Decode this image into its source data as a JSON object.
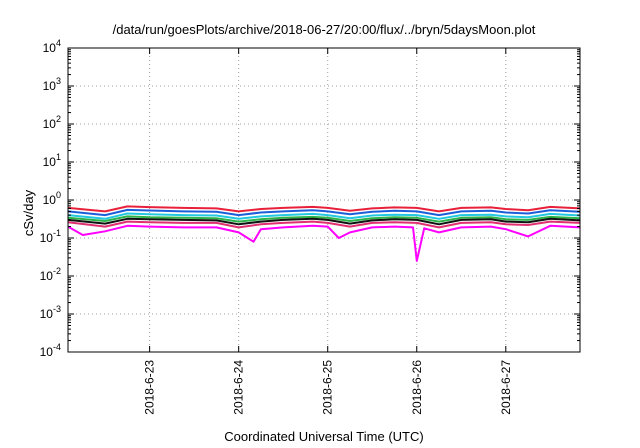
{
  "chart_data": {
    "type": "line",
    "title": "/data/run/goesPlots/archive/2018-06-27/20:00/flux/../bryn/5daysMoon.plot",
    "xlabel": "Coordinated Universal Time (UTC)",
    "ylabel": "cSv/day",
    "yscale": "log",
    "ylim": [
      0.0001,
      10000
    ],
    "xlim": [
      "2018-06-22T02:00",
      "2018-06-27T20:00"
    ],
    "x_ticks": [
      "2018-6-23",
      "2018-6-24",
      "2018-6-25",
      "2018-6-26",
      "2018-6-27"
    ],
    "y_ticks": [
      {
        "base": "10",
        "exp": "-4"
      },
      {
        "base": "10",
        "exp": "-3"
      },
      {
        "base": "10",
        "exp": "-2"
      },
      {
        "base": "10",
        "exp": "-1"
      },
      {
        "base": "10",
        "exp": "0"
      },
      {
        "base": "10",
        "exp": "1"
      },
      {
        "base": "10",
        "exp": "2"
      },
      {
        "base": "10",
        "exp": "3"
      },
      {
        "base": "10",
        "exp": "4"
      }
    ],
    "grid": true,
    "legend": "none",
    "series": [
      {
        "color": "#e8203a",
        "x": [
          "2018-06-22T02:00",
          "2018-06-22T12:00",
          "2018-06-22T18:00",
          "2018-06-23T00:00",
          "2018-06-23T09:00",
          "2018-06-23T18:00",
          "2018-06-24T00:00",
          "2018-06-24T06:00",
          "2018-06-24T12:00",
          "2018-06-24T20:00",
          "2018-06-25T00:00",
          "2018-06-25T06:00",
          "2018-06-25T12:00",
          "2018-06-25T18:00",
          "2018-06-26T00:00",
          "2018-06-26T06:00",
          "2018-06-26T12:00",
          "2018-06-26T20:00",
          "2018-06-27T00:00",
          "2018-06-27T06:00",
          "2018-06-27T12:00",
          "2018-06-27T20:00"
        ],
        "y": [
          0.62,
          0.5,
          0.68,
          0.65,
          0.62,
          0.6,
          0.5,
          0.58,
          0.62,
          0.66,
          0.62,
          0.52,
          0.6,
          0.64,
          0.62,
          0.5,
          0.62,
          0.64,
          0.58,
          0.54,
          0.66,
          0.6
        ]
      },
      {
        "color": "#1a5fd8",
        "x": [
          "2018-06-22T02:00",
          "2018-06-22T12:00",
          "2018-06-22T18:00",
          "2018-06-23T00:00",
          "2018-06-23T09:00",
          "2018-06-23T18:00",
          "2018-06-24T00:00",
          "2018-06-24T06:00",
          "2018-06-24T12:00",
          "2018-06-24T20:00",
          "2018-06-25T00:00",
          "2018-06-25T06:00",
          "2018-06-25T12:00",
          "2018-06-25T18:00",
          "2018-06-26T00:00",
          "2018-06-26T06:00",
          "2018-06-26T12:00",
          "2018-06-26T20:00",
          "2018-06-27T00:00",
          "2018-06-27T06:00",
          "2018-06-27T12:00",
          "2018-06-27T20:00"
        ],
        "y": [
          0.5,
          0.4,
          0.55,
          0.53,
          0.5,
          0.49,
          0.4,
          0.47,
          0.5,
          0.54,
          0.5,
          0.42,
          0.49,
          0.52,
          0.5,
          0.4,
          0.5,
          0.52,
          0.47,
          0.44,
          0.54,
          0.49
        ]
      },
      {
        "color": "#22c8e0",
        "x": [
          "2018-06-22T02:00",
          "2018-06-22T12:00",
          "2018-06-22T18:00",
          "2018-06-23T00:00",
          "2018-06-23T09:00",
          "2018-06-23T18:00",
          "2018-06-24T00:00",
          "2018-06-24T06:00",
          "2018-06-24T12:00",
          "2018-06-24T20:00",
          "2018-06-25T00:00",
          "2018-06-25T06:00",
          "2018-06-25T12:00",
          "2018-06-25T18:00",
          "2018-06-26T00:00",
          "2018-06-26T06:00",
          "2018-06-26T12:00",
          "2018-06-26T20:00",
          "2018-06-27T00:00",
          "2018-06-27T06:00",
          "2018-06-27T12:00",
          "2018-06-27T20:00"
        ],
        "y": [
          0.4,
          0.32,
          0.44,
          0.42,
          0.4,
          0.39,
          0.32,
          0.37,
          0.4,
          0.43,
          0.4,
          0.33,
          0.39,
          0.41,
          0.4,
          0.32,
          0.4,
          0.41,
          0.37,
          0.35,
          0.43,
          0.39
        ]
      },
      {
        "color": "#2bb34a",
        "x": [
          "2018-06-22T02:00",
          "2018-06-22T12:00",
          "2018-06-22T18:00",
          "2018-06-23T00:00",
          "2018-06-23T09:00",
          "2018-06-23T18:00",
          "2018-06-24T00:00",
          "2018-06-24T06:00",
          "2018-06-24T12:00",
          "2018-06-24T20:00",
          "2018-06-25T00:00",
          "2018-06-25T06:00",
          "2018-06-25T12:00",
          "2018-06-25T18:00",
          "2018-06-26T00:00",
          "2018-06-26T06:00",
          "2018-06-26T12:00",
          "2018-06-26T20:00",
          "2018-06-27T00:00",
          "2018-06-27T06:00",
          "2018-06-27T12:00",
          "2018-06-27T20:00"
        ],
        "y": [
          0.34,
          0.28,
          0.37,
          0.35,
          0.34,
          0.33,
          0.27,
          0.31,
          0.34,
          0.36,
          0.34,
          0.28,
          0.33,
          0.35,
          0.34,
          0.27,
          0.34,
          0.35,
          0.31,
          0.3,
          0.36,
          0.33
        ]
      },
      {
        "color": "#111111",
        "x": [
          "2018-06-22T02:00",
          "2018-06-22T12:00",
          "2018-06-22T18:00",
          "2018-06-23T00:00",
          "2018-06-23T09:00",
          "2018-06-23T18:00",
          "2018-06-24T00:00",
          "2018-06-24T06:00",
          "2018-06-24T12:00",
          "2018-06-24T20:00",
          "2018-06-25T00:00",
          "2018-06-25T06:00",
          "2018-06-25T12:00",
          "2018-06-25T18:00",
          "2018-06-26T00:00",
          "2018-06-26T06:00",
          "2018-06-26T12:00",
          "2018-06-26T20:00",
          "2018-06-27T00:00",
          "2018-06-27T06:00",
          "2018-06-27T12:00",
          "2018-06-27T20:00"
        ],
        "y": [
          0.3,
          0.24,
          0.32,
          0.31,
          0.3,
          0.29,
          0.23,
          0.27,
          0.3,
          0.32,
          0.3,
          0.24,
          0.29,
          0.31,
          0.3,
          0.23,
          0.3,
          0.31,
          0.27,
          0.26,
          0.32,
          0.29
        ]
      },
      {
        "color": "#e03070",
        "x": [
          "2018-06-22T02:00",
          "2018-06-22T12:00",
          "2018-06-22T18:00",
          "2018-06-23T00:00",
          "2018-06-23T09:00",
          "2018-06-23T18:00",
          "2018-06-24T00:00",
          "2018-06-24T06:00",
          "2018-06-24T12:00",
          "2018-06-24T20:00",
          "2018-06-25T00:00",
          "2018-06-25T06:00",
          "2018-06-25T12:00",
          "2018-06-25T18:00",
          "2018-06-26T00:00",
          "2018-06-26T06:00",
          "2018-06-26T12:00",
          "2018-06-26T20:00",
          "2018-06-27T00:00",
          "2018-06-27T06:00",
          "2018-06-27T12:00",
          "2018-06-27T20:00"
        ],
        "y": [
          0.26,
          0.2,
          0.27,
          0.26,
          0.25,
          0.25,
          0.19,
          0.23,
          0.25,
          0.27,
          0.25,
          0.2,
          0.25,
          0.26,
          0.25,
          0.19,
          0.25,
          0.26,
          0.23,
          0.22,
          0.27,
          0.25
        ]
      },
      {
        "color": "#ff00ff",
        "x": [
          "2018-06-22T02:00",
          "2018-06-22T06:00",
          "2018-06-22T12:00",
          "2018-06-22T18:00",
          "2018-06-23T00:00",
          "2018-06-23T09:00",
          "2018-06-23T18:00",
          "2018-06-24T00:00",
          "2018-06-24T04:00",
          "2018-06-24T06:00",
          "2018-06-24T12:00",
          "2018-06-24T20:00",
          "2018-06-25T00:00",
          "2018-06-25T03:00",
          "2018-06-25T06:00",
          "2018-06-25T12:00",
          "2018-06-25T18:00",
          "2018-06-25T23:00",
          "2018-06-26T00:00",
          "2018-06-26T02:00",
          "2018-06-26T06:00",
          "2018-06-26T12:00",
          "2018-06-26T20:00",
          "2018-06-27T00:00",
          "2018-06-27T06:00",
          "2018-06-27T12:00",
          "2018-06-27T20:00"
        ],
        "y": [
          0.2,
          0.12,
          0.15,
          0.21,
          0.2,
          0.19,
          0.19,
          0.14,
          0.08,
          0.17,
          0.19,
          0.21,
          0.2,
          0.1,
          0.14,
          0.19,
          0.2,
          0.19,
          0.025,
          0.18,
          0.14,
          0.19,
          0.2,
          0.17,
          0.11,
          0.21,
          0.19
        ]
      }
    ]
  }
}
